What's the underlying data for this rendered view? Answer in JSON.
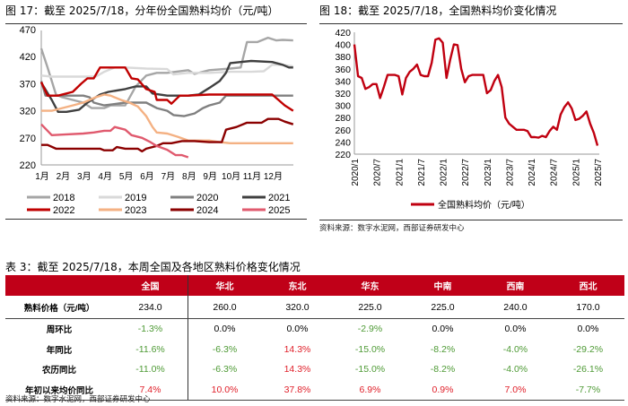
{
  "fig17": {
    "title": "图 17：截至 2025/7/18，分年份全国熟料均价（元/吨）"
  },
  "fig18": {
    "title": "图 18：截至 2025/7/18，全国熟料均价变化情况",
    "source": "资料来源：数字水泥网，西部证券研发中心"
  },
  "fig17_source": "资料来源：数字水泥网，西部证券研发中心",
  "chart_data": [
    {
      "type": "line",
      "ylim": [
        220,
        470
      ],
      "yticks": [
        220,
        270,
        320,
        370,
        420,
        470
      ],
      "xticks": [
        "1月",
        "2月",
        "3月",
        "4月",
        "5月",
        "6月",
        "7月",
        "8月",
        "9月",
        "10月",
        "11月",
        "12月"
      ],
      "legend_position": "bottom",
      "grid": false,
      "series": [
        {
          "name": "2018",
          "color": "#a6a6a6",
          "points": [
            [
              1,
              435
            ],
            [
              1.3,
              400
            ],
            [
              1.7,
              350
            ],
            [
              2,
              345
            ],
            [
              2.5,
              340
            ],
            [
              3,
              335
            ],
            [
              3.4,
              325
            ],
            [
              4,
              325
            ],
            [
              4.3,
              330
            ],
            [
              5,
              330
            ],
            [
              5.5,
              365
            ],
            [
              6,
              385
            ],
            [
              6.5,
              390
            ],
            [
              7,
              390
            ],
            [
              8,
              395
            ],
            [
              8.3,
              388
            ],
            [
              9,
              395
            ],
            [
              10,
              398
            ],
            [
              10.5,
              400
            ],
            [
              10.8,
              447
            ],
            [
              11.3,
              447
            ],
            [
              11.8,
              455
            ],
            [
              12.2,
              450
            ],
            [
              12.5,
              451
            ],
            [
              13,
              450
            ]
          ]
        },
        {
          "name": "2019",
          "color": "#d9d9d9",
          "points": [
            [
              1,
              385
            ],
            [
              1.5,
              383
            ],
            [
              3,
              383
            ],
            [
              3.6,
              383
            ],
            [
              4,
              392
            ],
            [
              4.5,
              400
            ],
            [
              5,
              400
            ],
            [
              6,
              398
            ],
            [
              7,
              397
            ],
            [
              7.3,
              387
            ],
            [
              8,
              390
            ],
            [
              9,
              390
            ],
            [
              10,
              392
            ],
            [
              11,
              392
            ],
            [
              11.6,
              393
            ],
            [
              12,
              405
            ],
            [
              12.5,
              405
            ],
            [
              13,
              402
            ]
          ]
        },
        {
          "name": "2020",
          "color": "#808080",
          "points": [
            [
              1,
              375
            ],
            [
              1.2,
              348
            ],
            [
              2,
              348
            ],
            [
              3,
              348
            ],
            [
              3.3,
              345
            ],
            [
              3.5,
              335
            ],
            [
              4,
              330
            ],
            [
              5,
              335
            ],
            [
              6,
              335
            ],
            [
              6.5,
              325
            ],
            [
              7,
              320
            ],
            [
              7.3,
              312
            ],
            [
              7.8,
              310
            ],
            [
              8.3,
              315
            ],
            [
              8.7,
              325
            ],
            [
              9,
              330
            ],
            [
              9.5,
              335
            ],
            [
              9.8,
              348
            ],
            [
              10,
              348
            ],
            [
              11,
              348
            ],
            [
              12,
              348
            ],
            [
              13,
              348
            ]
          ]
        },
        {
          "name": "2021",
          "color": "#404040",
          "points": [
            [
              1,
              372
            ],
            [
              1.5,
              340
            ],
            [
              1.8,
              318
            ],
            [
              2.2,
              318
            ],
            [
              2.8,
              322
            ],
            [
              3.2,
              335
            ],
            [
              3.8,
              350
            ],
            [
              4.2,
              355
            ],
            [
              5,
              360
            ],
            [
              5.5,
              365
            ],
            [
              6,
              365
            ],
            [
              6.3,
              352
            ],
            [
              7,
              348
            ],
            [
              8,
              348
            ],
            [
              8.5,
              350
            ],
            [
              9,
              362
            ],
            [
              9.5,
              375
            ],
            [
              9.8,
              390
            ],
            [
              10,
              408
            ],
            [
              10.5,
              410
            ],
            [
              11,
              412
            ],
            [
              12,
              410
            ],
            [
              12.5,
              405
            ],
            [
              12.8,
              400
            ],
            [
              13,
              400
            ]
          ]
        },
        {
          "name": "2022",
          "color": "#c00000",
          "points": [
            [
              1,
              373
            ],
            [
              1.3,
              348
            ],
            [
              1.8,
              348
            ],
            [
              2.5,
              355
            ],
            [
              2.9,
              370
            ],
            [
              3.2,
              380
            ],
            [
              3.5,
              380
            ],
            [
              3.8,
              400
            ],
            [
              4,
              400
            ],
            [
              5,
              400
            ],
            [
              5.3,
              380
            ],
            [
              5.6,
              378
            ],
            [
              6,
              360
            ],
            [
              6.4,
              355
            ],
            [
              6.5,
              340
            ],
            [
              7,
              340
            ],
            [
              7.2,
              333
            ],
            [
              7.6,
              348
            ],
            [
              8,
              348
            ],
            [
              9,
              350
            ],
            [
              10,
              350
            ],
            [
              11,
              350
            ],
            [
              12,
              350
            ],
            [
              12.3,
              340
            ],
            [
              12.6,
              330
            ],
            [
              13,
              320
            ]
          ]
        },
        {
          "name": "2023",
          "color": "#f4b183",
          "points": [
            [
              1,
              320
            ],
            [
              1.5,
              320
            ],
            [
              2,
              325
            ],
            [
              2.5,
              330
            ],
            [
              3,
              335
            ],
            [
              3.6,
              345
            ],
            [
              4,
              350
            ],
            [
              4.3,
              348
            ],
            [
              4.8,
              340
            ],
            [
              5.2,
              335
            ],
            [
              5.6,
              328
            ],
            [
              6,
              310
            ],
            [
              6.3,
              290
            ],
            [
              6.5,
              280
            ],
            [
              7,
              278
            ],
            [
              7.5,
              272
            ],
            [
              8,
              265
            ],
            [
              9,
              265
            ],
            [
              9.5,
              262
            ],
            [
              10,
              260
            ],
            [
              13,
              260
            ]
          ]
        },
        {
          "name": "2024",
          "color": "#8b0000",
          "points": [
            [
              1,
              257
            ],
            [
              1.3,
              257
            ],
            [
              1.7,
              250
            ],
            [
              2,
              250
            ],
            [
              3,
              250
            ],
            [
              3.8,
              250
            ],
            [
              4,
              247
            ],
            [
              4.4,
              247
            ],
            [
              4.6,
              253
            ],
            [
              5,
              250
            ],
            [
              5.6,
              250
            ],
            [
              5.8,
              245
            ],
            [
              6,
              250
            ],
            [
              6.5,
              255
            ],
            [
              6.8,
              260
            ],
            [
              7.2,
              260
            ],
            [
              7.7,
              264
            ],
            [
              8.3,
              264
            ],
            [
              9,
              262
            ],
            [
              9.6,
              262
            ],
            [
              9.8,
              285
            ],
            [
              10.3,
              290
            ],
            [
              10.8,
              298
            ],
            [
              11.5,
              298
            ],
            [
              11.8,
              305
            ],
            [
              12.3,
              305
            ],
            [
              12.6,
              300
            ],
            [
              13,
              295
            ]
          ]
        },
        {
          "name": "2025",
          "color": "#e05a6e",
          "points": [
            [
              1,
              295
            ],
            [
              1.5,
              275
            ],
            [
              2,
              276
            ],
            [
              3,
              278
            ],
            [
              3.5,
              280
            ],
            [
              4,
              283
            ],
            [
              4.3,
              283
            ],
            [
              4.5,
              290
            ],
            [
              5,
              285
            ],
            [
              5.3,
              275
            ],
            [
              5.8,
              270
            ],
            [
              6.2,
              262
            ],
            [
              6.5,
              255
            ],
            [
              7,
              248
            ],
            [
              7.4,
              238
            ],
            [
              7.7,
              238
            ],
            [
              8,
              234
            ]
          ]
        }
      ]
    },
    {
      "type": "line",
      "ylim": [
        220,
        420
      ],
      "yticks": [
        220,
        240,
        260,
        280,
        300,
        320,
        340,
        360,
        380,
        400,
        420
      ],
      "xticks": [
        "2020/1",
        "2020/7",
        "2021/1",
        "2021/7",
        "2022/1",
        "2022/7",
        "2023/1",
        "2023/7",
        "2024/1",
        "2024/7",
        "2025/1",
        "2025/7"
      ],
      "legend_position": "bottom",
      "grid": false,
      "series": [
        {
          "name": "全国熟料均价（元/吨）",
          "color": "#c00010",
          "x": [
            "2020-01",
            "2020-02",
            "2020-03",
            "2020-04",
            "2020-05",
            "2020-06",
            "2020-07",
            "2020-08",
            "2020-09",
            "2020-10",
            "2020-11",
            "2020-12",
            "2021-01",
            "2021-02",
            "2021-03",
            "2021-04",
            "2021-05",
            "2021-06",
            "2021-07",
            "2021-08",
            "2021-09",
            "2021-10",
            "2021-11",
            "2021-12",
            "2022-01",
            "2022-02",
            "2022-03",
            "2022-04",
            "2022-05",
            "2022-06",
            "2022-07",
            "2022-08",
            "2022-09",
            "2022-10",
            "2022-11",
            "2022-12",
            "2023-01",
            "2023-02",
            "2023-03",
            "2023-04",
            "2023-05",
            "2023-06",
            "2023-07",
            "2023-08",
            "2023-09",
            "2023-10",
            "2023-11",
            "2023-12",
            "2024-01",
            "2024-02",
            "2024-03",
            "2024-04",
            "2024-05",
            "2024-06",
            "2024-07",
            "2024-08",
            "2024-09",
            "2024-10",
            "2024-11",
            "2024-12",
            "2025-01",
            "2025-02",
            "2025-03",
            "2025-04",
            "2025-05",
            "2025-06",
            "2025-07"
          ],
          "values": [
            400,
            348,
            345,
            327,
            330,
            335,
            335,
            312,
            330,
            350,
            350,
            350,
            348,
            318,
            345,
            355,
            360,
            367,
            350,
            348,
            348,
            370,
            408,
            410,
            403,
            345,
            375,
            400,
            399,
            360,
            338,
            348,
            350,
            350,
            350,
            350,
            320,
            325,
            340,
            350,
            330,
            280,
            270,
            265,
            260,
            260,
            260,
            258,
            248,
            248,
            247,
            250,
            248,
            258,
            265,
            260,
            285,
            297,
            305,
            295,
            276,
            278,
            283,
            290,
            270,
            255,
            234
          ]
        }
      ]
    }
  ],
  "table": {
    "title": "表 3：截至 2025/7/18，本周全国及各地区熟料价格变化情况",
    "headers": [
      "",
      "全国",
      "华北",
      "东北",
      "华东",
      "中南",
      "西南",
      "西北"
    ],
    "rows": [
      {
        "label": "熟料价格（元/吨）",
        "values": [
          "234.0",
          "260.0",
          "320.0",
          "225.0",
          "225.0",
          "240.0",
          "170.0"
        ]
      },
      {
        "label": "周环比",
        "values": [
          "-1.3%",
          "0.0%",
          "0.0%",
          "-2.9%",
          "0.0%",
          "0.0%",
          "0.0%"
        ]
      },
      {
        "label": "年同比",
        "values": [
          "-11.6%",
          "-6.3%",
          "14.3%",
          "-15.0%",
          "-8.2%",
          "-4.0%",
          "-29.2%"
        ]
      },
      {
        "label": "农历同比",
        "values": [
          "-11.0%",
          "-6.3%",
          "14.3%",
          "-15.0%",
          "-8.2%",
          "-4.0%",
          "-26.1%"
        ]
      },
      {
        "label": "年初以来均价同比",
        "values": [
          "7.4%",
          "10.0%",
          "37.8%",
          "6.9%",
          "0.9%",
          "7.0%",
          "-7.7%"
        ]
      }
    ],
    "source": "资料来源：数字水泥网，西部证券研发中心"
  },
  "colors": {
    "header_bg": "#c00018",
    "negative": "#4e9a35",
    "positive": "#e0202a"
  }
}
